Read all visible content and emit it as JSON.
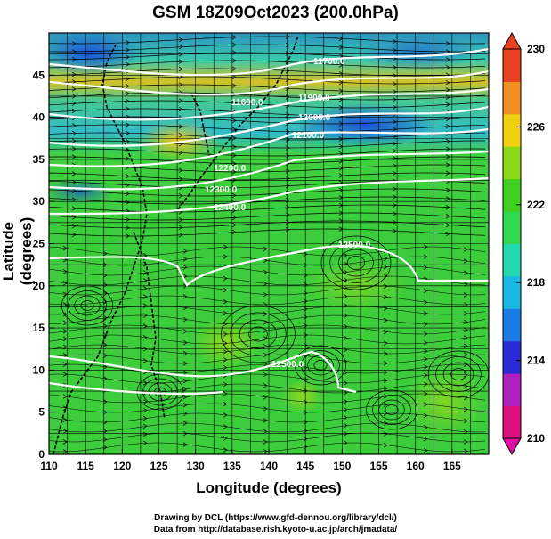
{
  "title": "GSM 18Z09Oct2023 (200.0hPa)",
  "xlabel": "Longitude (degrees)",
  "ylabel": "Latitude  (degrees)",
  "credits": [
    "Drawing by DCL (https://www.gfd-dennou.org/library/dcl/)",
    "Data from http://database.rish.kyoto-u.ac.jp/arch/jmadata/"
  ],
  "x_ticks": [
    "110",
    "115",
    "120",
    "125",
    "130",
    "135",
    "140",
    "145",
    "150",
    "155",
    "160",
    "165"
  ],
  "y_ticks": [
    "0",
    "5",
    "10",
    "15",
    "20",
    "25",
    "30",
    "35",
    "40",
    "45"
  ],
  "colorbar": {
    "ticks": [
      "230",
      "226",
      "222",
      "218",
      "214",
      "210"
    ],
    "colors": [
      "#e0107f",
      "#b01fc0",
      "#2a2ad8",
      "#1b7be8",
      "#18b8e0",
      "#22d8b0",
      "#2ed850",
      "#40d020",
      "#8cd818",
      "#f0d010",
      "#f09020",
      "#e84020"
    ]
  },
  "contour_labels": [
    "11700.0",
    "11600.0",
    "11900.0",
    "12000.0",
    "12100.0",
    "12200.0",
    "12300.0",
    "12400.0",
    "12500.0",
    "12500.0"
  ],
  "chart_data": {
    "type": "heatmap",
    "title": "GSM 18Z09Oct2023 (200.0hPa)",
    "xlabel": "Longitude (degrees)",
    "ylabel": "Latitude  (degrees)",
    "xlim": [
      110,
      170
    ],
    "ylim": [
      0,
      50
    ],
    "color_range": [
      210,
      230
    ],
    "contour_levels": [
      11600,
      11700,
      11800,
      11900,
      12000,
      12100,
      12200,
      12300,
      12400,
      12500
    ]
  }
}
